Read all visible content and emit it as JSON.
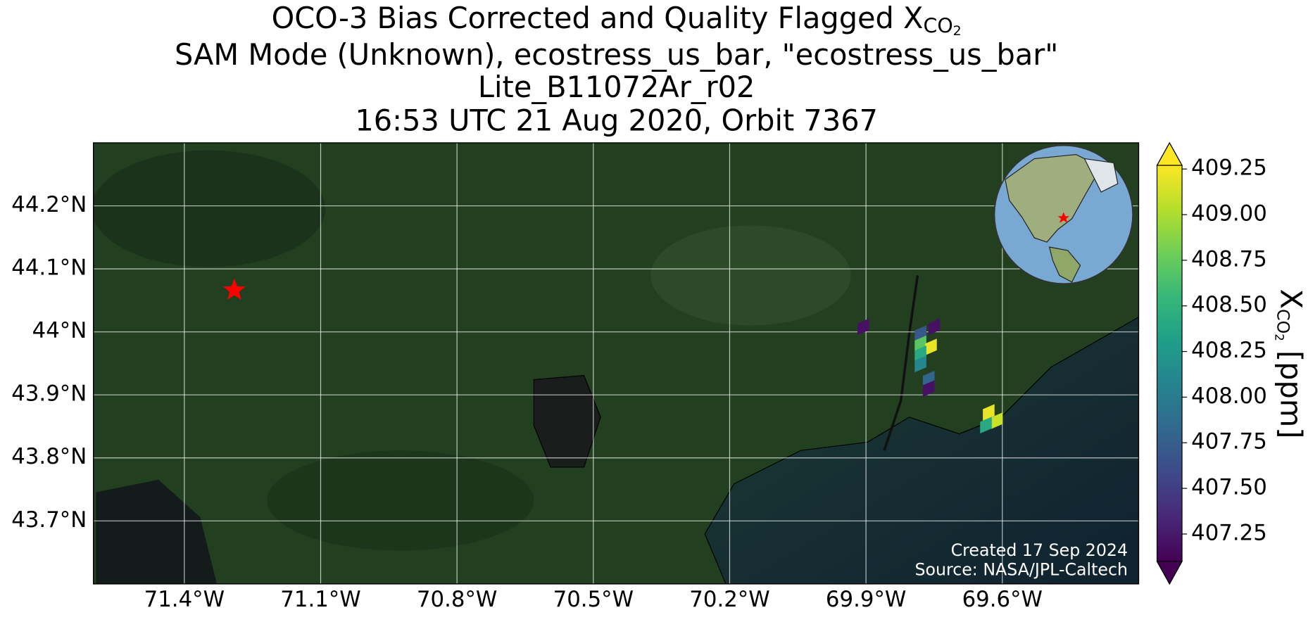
{
  "chart_data": {
    "type": "map",
    "title_lines": [
      "OCO-3 Bias Corrected and Quality Flagged X",
      "SAM Mode (Unknown), ecostress_us_bar, \"ecostress_us_bar\"",
      "Lite_B11072Ar_r02",
      "16:53 UTC 21 Aug 2020, Orbit 7367"
    ],
    "title_subscript": "CO",
    "title_subsubscript": "2",
    "xlim": [
      -71.6,
      -69.3
    ],
    "ylim": [
      43.6,
      44.3
    ],
    "xticks": [
      {
        "value": -71.4,
        "label": "71.4°W"
      },
      {
        "value": -71.1,
        "label": "71.1°W"
      },
      {
        "value": -70.8,
        "label": "70.8°W"
      },
      {
        "value": -70.5,
        "label": "70.5°W"
      },
      {
        "value": -70.2,
        "label": "70.2°W"
      },
      {
        "value": -69.9,
        "label": "69.9°W"
      },
      {
        "value": -69.6,
        "label": "69.6°W"
      }
    ],
    "yticks": [
      {
        "value": 44.2,
        "label": "44.2°N"
      },
      {
        "value": 44.1,
        "label": "44.1°N"
      },
      {
        "value": 44,
        "label": "44°N"
      },
      {
        "value": 43.9,
        "label": "43.9°N"
      },
      {
        "value": 43.8,
        "label": "43.8°N"
      },
      {
        "value": 43.7,
        "label": "43.7°N"
      }
    ],
    "grid": true,
    "colormap": "viridis",
    "clim": [
      407.1,
      409.27
    ],
    "cticks": [
      409.25,
      {
        "value": 409,
        "label": "409.00"
      },
      408.75,
      {
        "value": 408.5,
        "label": "408.50"
      },
      408.25,
      {
        "value": 408,
        "label": "408.00"
      },
      407.75,
      {
        "value": 407.5,
        "label": "407.50"
      },
      407.25
    ],
    "colorbar_label": "X",
    "colorbar_label_subscript": "CO",
    "colorbar_label_subsubscript": "2",
    "colorbar_label_unit": " [ppm]",
    "site": {
      "lon": -71.29,
      "lat": 44.066,
      "color": "#ff0000"
    },
    "soundings": {
      "lon": [
        -69.906,
        -69.75,
        -69.78,
        -69.78,
        -69.757,
        -69.78,
        -69.78,
        -69.762,
        -69.762,
        -69.63,
        -69.612,
        -69.636
      ],
      "lat": [
        44.008,
        44.008,
        43.997,
        43.981,
        43.976,
        43.965,
        43.949,
        43.925,
        43.91,
        43.872,
        43.859,
        43.852
      ],
      "xco2": [
        407.2,
        407.2,
        407.7,
        408.7,
        409.2,
        408.4,
        408.1,
        407.8,
        407.2,
        409.2,
        409.1,
        408.4
      ]
    },
    "footer": [
      "Created 17 Sep 2024",
      "Source: NASA/JPL-Caltech"
    ]
  }
}
